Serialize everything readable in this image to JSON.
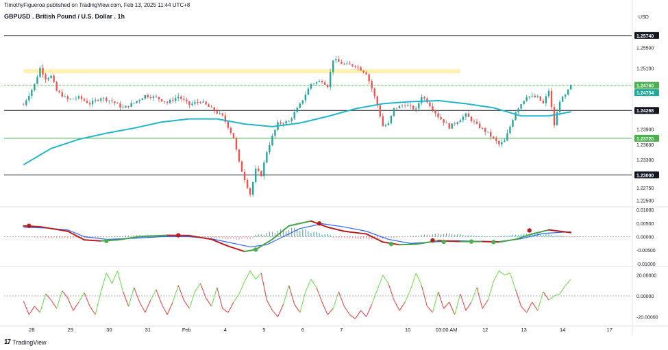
{
  "header": {
    "published": "TimothyFigueroa published on TradingView.com, Feb 13, 2025 11:44 UTC+8",
    "title": "GBPUSD . British Pound / U.S. Dollar . 1h",
    "currency": "USD"
  },
  "footer": {
    "logo_text": "TradingView",
    "logo_mark": "17"
  },
  "colors": {
    "up": "#26a69a",
    "down": "#ef5350",
    "ma": "#22b5c9",
    "zone": "#fff0b3",
    "level_black": "#131722",
    "level_green": "#4caf50",
    "macd_red": "#b71c1c",
    "macd_blue": "#2962ff",
    "macd_green": "#43a047",
    "osc_up": "#66dd44",
    "osc_down": "#e53935"
  },
  "chart_data": [
    {
      "type": "candlestick",
      "title": "GBPUSD . British Pound / U.S. Dollar . 1h",
      "ylabel": "USD",
      "ylim": [
        1.224,
        1.2598
      ],
      "y_ticks": [
        {
          "value": 1.255,
          "label": "1.25500"
        },
        {
          "value": 1.251,
          "label": "1.25100"
        },
        {
          "value": 1.239,
          "label": "1.23900"
        },
        {
          "value": 1.236,
          "label": "1.23600"
        },
        {
          "value": 1.233,
          "label": "1.23300"
        },
        {
          "value": 1.2275,
          "label": "1.22750"
        },
        {
          "value": 1.225,
          "label": "1.22500"
        }
      ],
      "levels": [
        {
          "value": 1.2574,
          "label": "1.25740",
          "color": "black"
        },
        {
          "value": 1.24268,
          "label": "1.24268",
          "color": "black"
        },
        {
          "value": 1.2372,
          "label": "1.23720",
          "color": "green"
        },
        {
          "value": 1.23,
          "label": "1.23000",
          "color": "black"
        },
        {
          "value": 1.2476,
          "label": "1.24760",
          "color": "green",
          "dashed": true
        }
      ],
      "price_labels": [
        {
          "value": 1.24754,
          "label": "1.24754"
        }
      ],
      "zone": {
        "from": 1.25,
        "to": 1.2508,
        "x_from": 0,
        "x_to": 158
      },
      "close_path": [
        [
          0,
          1.2438
        ],
        [
          4,
          1.2478
        ],
        [
          6,
          1.251
        ],
        [
          8,
          1.249
        ],
        [
          10,
          1.2494
        ],
        [
          12,
          1.2465
        ],
        [
          16,
          1.2448
        ],
        [
          20,
          1.2452
        ],
        [
          24,
          1.244
        ],
        [
          28,
          1.2452
        ],
        [
          32,
          1.2445
        ],
        [
          36,
          1.2431
        ],
        [
          40,
          1.2442
        ],
        [
          44,
          1.2456
        ],
        [
          48,
          1.2452
        ],
        [
          52,
          1.2442
        ],
        [
          56,
          1.2454
        ],
        [
          60,
          1.2438
        ],
        [
          64,
          1.2445
        ],
        [
          68,
          1.243
        ],
        [
          72,
          1.2415
        ],
        [
          74,
          1.2395
        ],
        [
          76,
          1.2373
        ],
        [
          78,
          1.2324
        ],
        [
          80,
          1.2292
        ],
        [
          82,
          1.2262
        ],
        [
          84,
          1.231
        ],
        [
          86,
          1.23
        ],
        [
          88,
          1.2346
        ],
        [
          90,
          1.2375
        ],
        [
          92,
          1.2401
        ],
        [
          96,
          1.2405
        ],
        [
          100,
          1.2438
        ],
        [
          104,
          1.2479
        ],
        [
          108,
          1.2485
        ],
        [
          110,
          1.2475
        ],
        [
          112,
          1.2527
        ],
        [
          116,
          1.2517
        ],
        [
          120,
          1.2515
        ],
        [
          124,
          1.25
        ],
        [
          126,
          1.247
        ],
        [
          128,
          1.2437
        ],
        [
          130,
          1.2396
        ],
        [
          132,
          1.24
        ],
        [
          134,
          1.243
        ],
        [
          138,
          1.2438
        ],
        [
          142,
          1.2428
        ],
        [
          144,
          1.2455
        ],
        [
          146,
          1.2445
        ],
        [
          150,
          1.2415
        ],
        [
          154,
          1.2394
        ],
        [
          158,
          1.241
        ],
        [
          160,
          1.2418
        ],
        [
          164,
          1.2398
        ],
        [
          168,
          1.2382
        ],
        [
          172,
          1.236
        ],
        [
          174,
          1.2366
        ],
        [
          176,
          1.2395
        ],
        [
          178,
          1.2425
        ],
        [
          182,
          1.2455
        ],
        [
          186,
          1.2452
        ],
        [
          188,
          1.244
        ],
        [
          190,
          1.2466
        ],
        [
          192,
          1.2398
        ],
        [
          194,
          1.2446
        ],
        [
          196,
          1.2456
        ],
        [
          198,
          1.2475
        ]
      ],
      "ma_path": [
        [
          0,
          1.232
        ],
        [
          10,
          1.2352
        ],
        [
          20,
          1.237
        ],
        [
          30,
          1.2382
        ],
        [
          40,
          1.2392
        ],
        [
          50,
          1.2404
        ],
        [
          60,
          1.241
        ],
        [
          70,
          1.241
        ],
        [
          80,
          1.24
        ],
        [
          90,
          1.2395
        ],
        [
          100,
          1.2402
        ],
        [
          110,
          1.2415
        ],
        [
          120,
          1.243
        ],
        [
          130,
          1.244
        ],
        [
          140,
          1.2444
        ],
        [
          150,
          1.2446
        ],
        [
          160,
          1.244
        ],
        [
          170,
          1.2432
        ],
        [
          180,
          1.2416
        ],
        [
          190,
          1.2416
        ],
        [
          198,
          1.2424
        ]
      ]
    },
    {
      "type": "histogram_macd",
      "ylim": [
        -0.0108,
        0.0108
      ],
      "y_ticks": [
        {
          "value": 0.01,
          "label": "0.01000"
        },
        {
          "value": 0.005,
          "label": "0.00500"
        },
        {
          "value": 0,
          "label": "0.00000"
        },
        {
          "value": -0.005,
          "label": "-0.00500"
        },
        {
          "value": -0.01,
          "label": "-0.01000"
        }
      ],
      "macd_path": [
        [
          0,
          0.004
        ],
        [
          6,
          0.0037
        ],
        [
          10,
          0.003
        ],
        [
          16,
          0.002
        ],
        [
          22,
          -0.0012
        ],
        [
          28,
          -0.0016
        ],
        [
          34,
          -0.0012
        ],
        [
          42,
          0.0
        ],
        [
          52,
          0.0005
        ],
        [
          60,
          0.0004
        ],
        [
          68,
          -0.001
        ],
        [
          74,
          -0.0035
        ],
        [
          80,
          -0.0055
        ],
        [
          84,
          -0.0048
        ],
        [
          90,
          -0.001
        ],
        [
          96,
          0.004
        ],
        [
          104,
          0.0058
        ],
        [
          110,
          0.0035
        ],
        [
          116,
          0.002
        ],
        [
          124,
          0.001
        ],
        [
          130,
          -0.002
        ],
        [
          136,
          -0.003
        ],
        [
          142,
          -0.0028
        ],
        [
          150,
          -0.0015
        ],
        [
          158,
          -0.0018
        ],
        [
          166,
          -0.0018
        ],
        [
          172,
          -0.002
        ],
        [
          178,
          -0.001
        ],
        [
          184,
          0.001
        ],
        [
          190,
          0.0025
        ],
        [
          198,
          0.0015
        ]
      ],
      "signal_path": [
        [
          0,
          0.0035
        ],
        [
          8,
          0.0032
        ],
        [
          16,
          0.0025
        ],
        [
          22,
          0.0
        ],
        [
          30,
          -0.001
        ],
        [
          40,
          -0.0006
        ],
        [
          50,
          0.0
        ],
        [
          60,
          0.0
        ],
        [
          68,
          -0.0008
        ],
        [
          76,
          -0.0025
        ],
        [
          82,
          -0.0038
        ],
        [
          88,
          -0.003
        ],
        [
          94,
          0.0
        ],
        [
          100,
          0.003
        ],
        [
          108,
          0.0048
        ],
        [
          116,
          0.0036
        ],
        [
          124,
          0.002
        ],
        [
          132,
          -0.001
        ],
        [
          140,
          -0.0025
        ],
        [
          148,
          -0.002
        ],
        [
          156,
          -0.0015
        ],
        [
          164,
          -0.0017
        ],
        [
          172,
          -0.0018
        ],
        [
          180,
          -0.0008
        ],
        [
          188,
          0.0012
        ],
        [
          198,
          0.0018
        ]
      ],
      "cross_red": [
        [
          2,
          0.004
        ],
        [
          56,
          0.0005
        ],
        [
          107,
          0.0049
        ],
        [
          148,
          -0.0014
        ],
        [
          183,
          0.0023
        ]
      ],
      "cross_green": [
        [
          30,
          -0.0016
        ],
        [
          84,
          -0.0048
        ],
        [
          133,
          -0.0027
        ],
        [
          152,
          -0.0019
        ],
        [
          162,
          -0.0018
        ],
        [
          170,
          -0.002
        ]
      ],
      "histogram": [
        [
          0,
          -0.0003
        ],
        [
          4,
          -0.0004
        ],
        [
          8,
          -0.0006
        ],
        [
          12,
          -0.0007
        ],
        [
          16,
          -0.0008
        ],
        [
          20,
          -0.0009
        ],
        [
          24,
          -0.0006
        ],
        [
          28,
          -0.0003
        ],
        [
          32,
          0.0002
        ],
        [
          36,
          0.0005
        ],
        [
          40,
          0.0007
        ],
        [
          44,
          0.0008
        ],
        [
          48,
          0.0006
        ],
        [
          52,
          0.0003
        ],
        [
          56,
          -0.0002
        ],
        [
          60,
          -0.0004
        ],
        [
          64,
          -0.0006
        ],
        [
          68,
          -0.0008
        ],
        [
          72,
          -0.001
        ],
        [
          76,
          -0.0012
        ],
        [
          80,
          -0.001
        ],
        [
          84,
          0.001
        ],
        [
          88,
          0.002
        ],
        [
          92,
          0.003
        ],
        [
          96,
          0.0036
        ],
        [
          100,
          0.003
        ],
        [
          104,
          0.002
        ],
        [
          108,
          0.001
        ],
        [
          112,
          -0.0006
        ],
        [
          116,
          -0.0008
        ],
        [
          120,
          -0.001
        ],
        [
          124,
          -0.0012
        ],
        [
          128,
          -0.001
        ],
        [
          132,
          -0.0006
        ],
        [
          136,
          -0.0002
        ],
        [
          140,
          0.0004
        ],
        [
          144,
          0.0008
        ],
        [
          148,
          0.0012
        ],
        [
          152,
          0.0014
        ],
        [
          156,
          0.001
        ],
        [
          160,
          0.0006
        ],
        [
          164,
          0.0003
        ],
        [
          168,
          0.0
        ],
        [
          172,
          0.0004
        ],
        [
          176,
          0.0008
        ],
        [
          180,
          0.0012
        ],
        [
          184,
          0.0016
        ],
        [
          188,
          0.001
        ],
        [
          192,
          0.0005
        ],
        [
          196,
          -0.0002
        ],
        [
          198,
          -0.0003
        ]
      ]
    },
    {
      "type": "oscillator",
      "ylim": [
        -25,
        27
      ],
      "y_ticks": [
        {
          "value": 20,
          "label": "20.00000"
        },
        {
          "value": 0,
          "label": "0.00000"
        },
        {
          "value": -20,
          "label": "-20.00000"
        }
      ],
      "values": [
        [
          0,
          -5
        ],
        [
          2,
          -18
        ],
        [
          4,
          -10
        ],
        [
          6,
          -16
        ],
        [
          8,
          2
        ],
        [
          10,
          -4
        ],
        [
          12,
          -12
        ],
        [
          14,
          5
        ],
        [
          16,
          -2
        ],
        [
          18,
          -14
        ],
        [
          20,
          -6
        ],
        [
          22,
          3
        ],
        [
          24,
          -10
        ],
        [
          26,
          -18
        ],
        [
          28,
          4
        ],
        [
          30,
          22
        ],
        [
          32,
          12
        ],
        [
          34,
          24
        ],
        [
          36,
          4
        ],
        [
          38,
          -10
        ],
        [
          40,
          8
        ],
        [
          42,
          -6
        ],
        [
          44,
          -16
        ],
        [
          46,
          -4
        ],
        [
          48,
          6
        ],
        [
          50,
          -8
        ],
        [
          52,
          -18
        ],
        [
          54,
          -6
        ],
        [
          56,
          10
        ],
        [
          58,
          -4
        ],
        [
          60,
          -12
        ],
        [
          62,
          4
        ],
        [
          64,
          12
        ],
        [
          66,
          -2
        ],
        [
          68,
          -10
        ],
        [
          70,
          8
        ],
        [
          72,
          -12
        ],
        [
          74,
          -16
        ],
        [
          76,
          -6
        ],
        [
          78,
          2
        ],
        [
          80,
          14
        ],
        [
          82,
          24
        ],
        [
          84,
          16
        ],
        [
          86,
          22
        ],
        [
          88,
          -4
        ],
        [
          90,
          -14
        ],
        [
          92,
          -20
        ],
        [
          94,
          -8
        ],
        [
          96,
          10
        ],
        [
          98,
          -8
        ],
        [
          100,
          -16
        ],
        [
          102,
          4
        ],
        [
          104,
          16
        ],
        [
          106,
          8
        ],
        [
          108,
          -6
        ],
        [
          110,
          -18
        ],
        [
          112,
          -12
        ],
        [
          114,
          4
        ],
        [
          116,
          -10
        ],
        [
          118,
          -18
        ],
        [
          120,
          -22
        ],
        [
          122,
          -14
        ],
        [
          124,
          -20
        ],
        [
          126,
          -8
        ],
        [
          128,
          6
        ],
        [
          130,
          20
        ],
        [
          132,
          12
        ],
        [
          134,
          -4
        ],
        [
          136,
          -14
        ],
        [
          138,
          -6
        ],
        [
          140,
          6
        ],
        [
          142,
          22
        ],
        [
          144,
          10
        ],
        [
          146,
          -10
        ],
        [
          148,
          -16
        ],
        [
          150,
          4
        ],
        [
          152,
          -12
        ],
        [
          154,
          -6
        ],
        [
          156,
          -18
        ],
        [
          158,
          2
        ],
        [
          160,
          -14
        ],
        [
          162,
          -6
        ],
        [
          164,
          8
        ],
        [
          166,
          -12
        ],
        [
          168,
          -4
        ],
        [
          170,
          14
        ],
        [
          172,
          24
        ],
        [
          174,
          20
        ],
        [
          176,
          22
        ],
        [
          178,
          6
        ],
        [
          180,
          -10
        ],
        [
          182,
          -16
        ],
        [
          184,
          -6
        ],
        [
          186,
          -14
        ],
        [
          188,
          4
        ],
        [
          190,
          -4
        ],
        [
          192,
          0
        ],
        [
          194,
          2
        ],
        [
          196,
          10
        ],
        [
          198,
          16
        ]
      ]
    }
  ],
  "x_axis": {
    "labels": [
      {
        "text": "28",
        "pos": 3
      },
      {
        "text": "29",
        "pos": 17
      },
      {
        "text": "30",
        "pos": 31
      },
      {
        "text": "31",
        "pos": 45
      },
      {
        "text": "Feb",
        "pos": 59
      },
      {
        "text": "4",
        "pos": 73
      },
      {
        "text": "5",
        "pos": 87
      },
      {
        "text": "6",
        "pos": 101
      },
      {
        "text": "7",
        "pos": 115
      },
      {
        "text": "10",
        "pos": 139
      },
      {
        "text": "03:00 AM",
        "pos": 153
      },
      {
        "text": "12",
        "pos": 167
      },
      {
        "text": "13",
        "pos": 181
      },
      {
        "text": "14",
        "pos": 195
      },
      {
        "text": "17",
        "pos": 212
      }
    ],
    "domain": [
      -7,
      220
    ]
  }
}
